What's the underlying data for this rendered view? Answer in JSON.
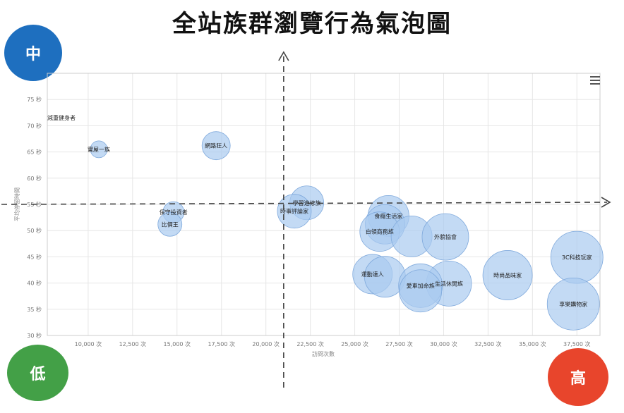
{
  "title": "全站族群瀏覽行為氣泡圖",
  "corners": {
    "mid": {
      "label": "中",
      "color": "#1e6fbf"
    },
    "low": {
      "label": "低",
      "color": "#43a047"
    },
    "high": {
      "label": "高",
      "color": "#e8452c"
    }
  },
  "colors": {
    "bubble_fill": "#aacbf0",
    "bubble_stroke": "#7fa9dc"
  },
  "chart_data": {
    "type": "scatter",
    "title": "",
    "xlabel": "訪問次數",
    "ylabel": "平均停留時間",
    "xlim": [
      7700,
      38800
    ],
    "ylim": [
      30,
      80
    ],
    "x_ticks": [
      10000,
      12500,
      15000,
      17500,
      20000,
      22500,
      25000,
      27500,
      30000,
      32500,
      35000,
      37500
    ],
    "x_tick_labels": [
      "10,000 次",
      "12,500 次",
      "15,000 次",
      "17,500 次",
      "20,000 次",
      "22,500 次",
      "25,000 次",
      "27,500 次",
      "30,000 次",
      "32,500 次",
      "35,000 次",
      "37,500 次"
    ],
    "y_ticks": [
      30,
      35,
      40,
      45,
      50,
      55,
      60,
      65,
      70,
      75
    ],
    "y_tick_labels": [
      "30 秒",
      "35 秒",
      "40 秒",
      "45 秒",
      "50 秒",
      "55 秒",
      "60 秒",
      "65 秒",
      "70 秒",
      "75 秒"
    ],
    "grid": true,
    "quadrant_lines": {
      "x": 21000,
      "y": 55
    },
    "points": [
      {
        "name": "減重健身者",
        "x": 7700,
        "y": 71.5,
        "size": 0
      },
      {
        "name": "實屋一族",
        "x": 10600,
        "y": 65.5,
        "size": 12
      },
      {
        "name": "網路狂人",
        "x": 17200,
        "y": 66.2,
        "size": 20
      },
      {
        "name": "保守投資者",
        "x": 14800,
        "y": 53.5,
        "size": 15
      },
      {
        "name": "比價王",
        "x": 14600,
        "y": 51.2,
        "size": 17
      },
      {
        "name": "學習進修族",
        "x": 22300,
        "y": 55.3,
        "size": 24
      },
      {
        "name": "時事評論家",
        "x": 21600,
        "y": 53.7,
        "size": 24
      },
      {
        "name": "食癮生活家",
        "x": 26900,
        "y": 52.8,
        "size": 29
      },
      {
        "name": "",
        "x": 26700,
        "y": 51.2,
        "size": 28
      },
      {
        "name": "白領商務族",
        "x": 26400,
        "y": 49.8,
        "size": 28
      },
      {
        "name": "",
        "x": 28200,
        "y": 48.9,
        "size": 29
      },
      {
        "name": "外貌協會",
        "x": 30100,
        "y": 48.8,
        "size": 33
      },
      {
        "name": "運動達人",
        "x": 26000,
        "y": 41.7,
        "size": 28
      },
      {
        "name": "",
        "x": 26700,
        "y": 41.2,
        "size": 29
      },
      {
        "name": "生活休閒族",
        "x": 30300,
        "y": 39.9,
        "size": 32
      },
      {
        "name": "愛車加命族",
        "x": 28700,
        "y": 39.5,
        "size": 31
      },
      {
        "name": "",
        "x": 28700,
        "y": 38.5,
        "size": 30
      },
      {
        "name": "時尚品味家",
        "x": 33600,
        "y": 41.5,
        "size": 35
      },
      {
        "name": "3C科技玩家",
        "x": 37500,
        "y": 44.9,
        "size": 37
      },
      {
        "name": "享樂購物家",
        "x": 37300,
        "y": 36.0,
        "size": 37
      }
    ]
  }
}
